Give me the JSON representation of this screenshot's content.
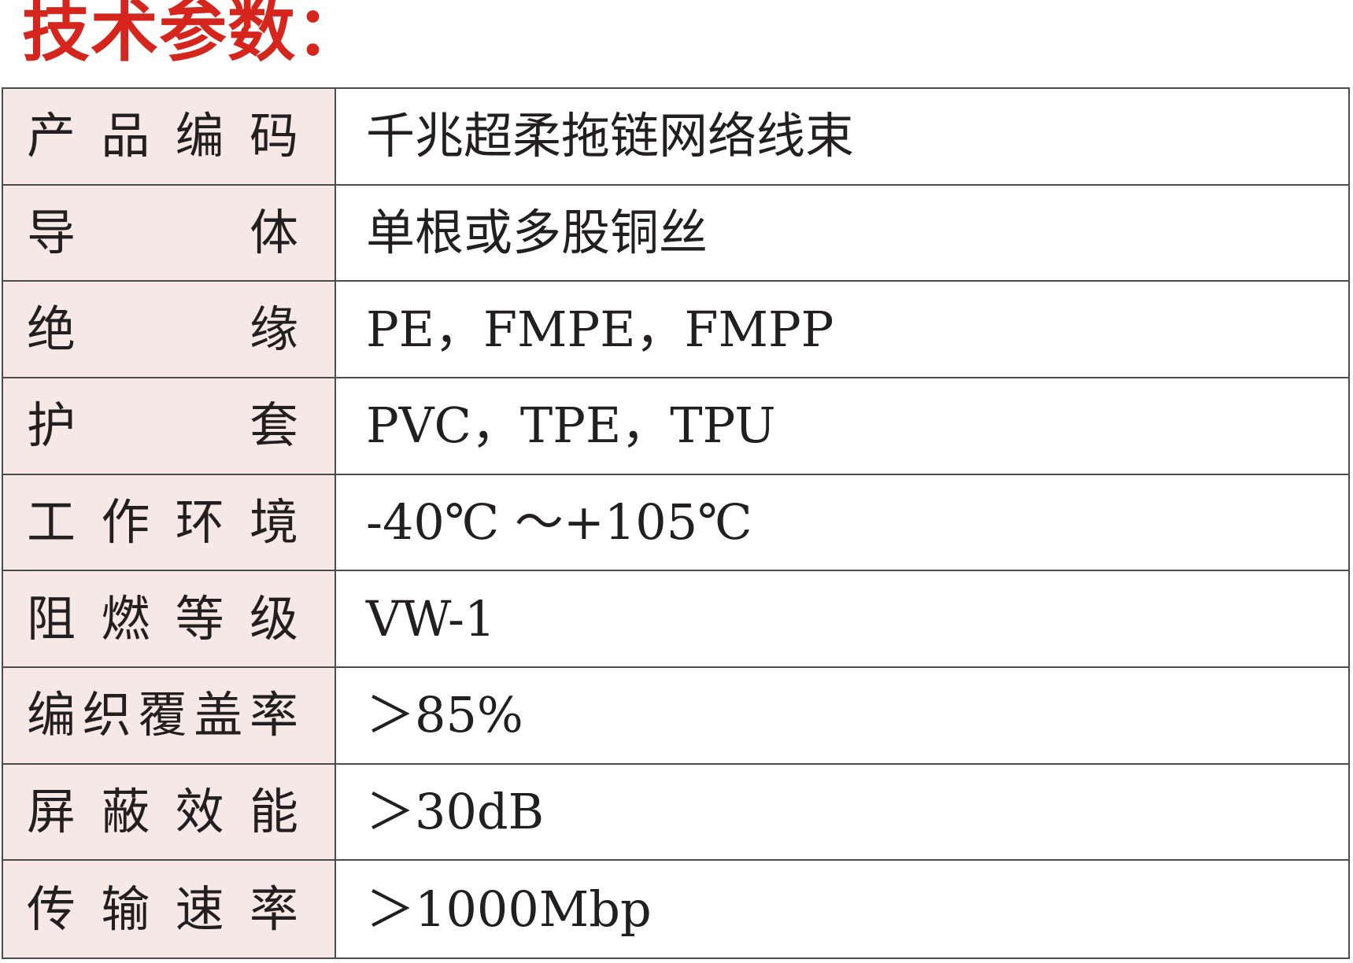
{
  "title": "技术参数：",
  "colors": {
    "title_red": "#d6251c",
    "label_background": "#f7e8e8",
    "border_gray": "#4c4c4c",
    "text_black": "#231f20",
    "page_background": "#ffffff"
  },
  "table": {
    "rows": [
      {
        "label": "产品编码",
        "value": "千兆超柔拖链网络线束"
      },
      {
        "label": "导体",
        "value": "单根或多股铜丝"
      },
      {
        "label": "绝缘",
        "value": "PE，FMPE，FMPP"
      },
      {
        "label": "护套",
        "value": "PVC，TPE，TPU"
      },
      {
        "label": "工作环境",
        "value": "-40℃ ～+105℃"
      },
      {
        "label": "阻燃等级",
        "value": "VW-1"
      },
      {
        "label": "编织覆盖率",
        "value": "＞85%"
      },
      {
        "label": "屏蔽效能",
        "value": "＞30dB"
      },
      {
        "label": "传输速率",
        "value": "＞1000Mbp"
      }
    ]
  }
}
